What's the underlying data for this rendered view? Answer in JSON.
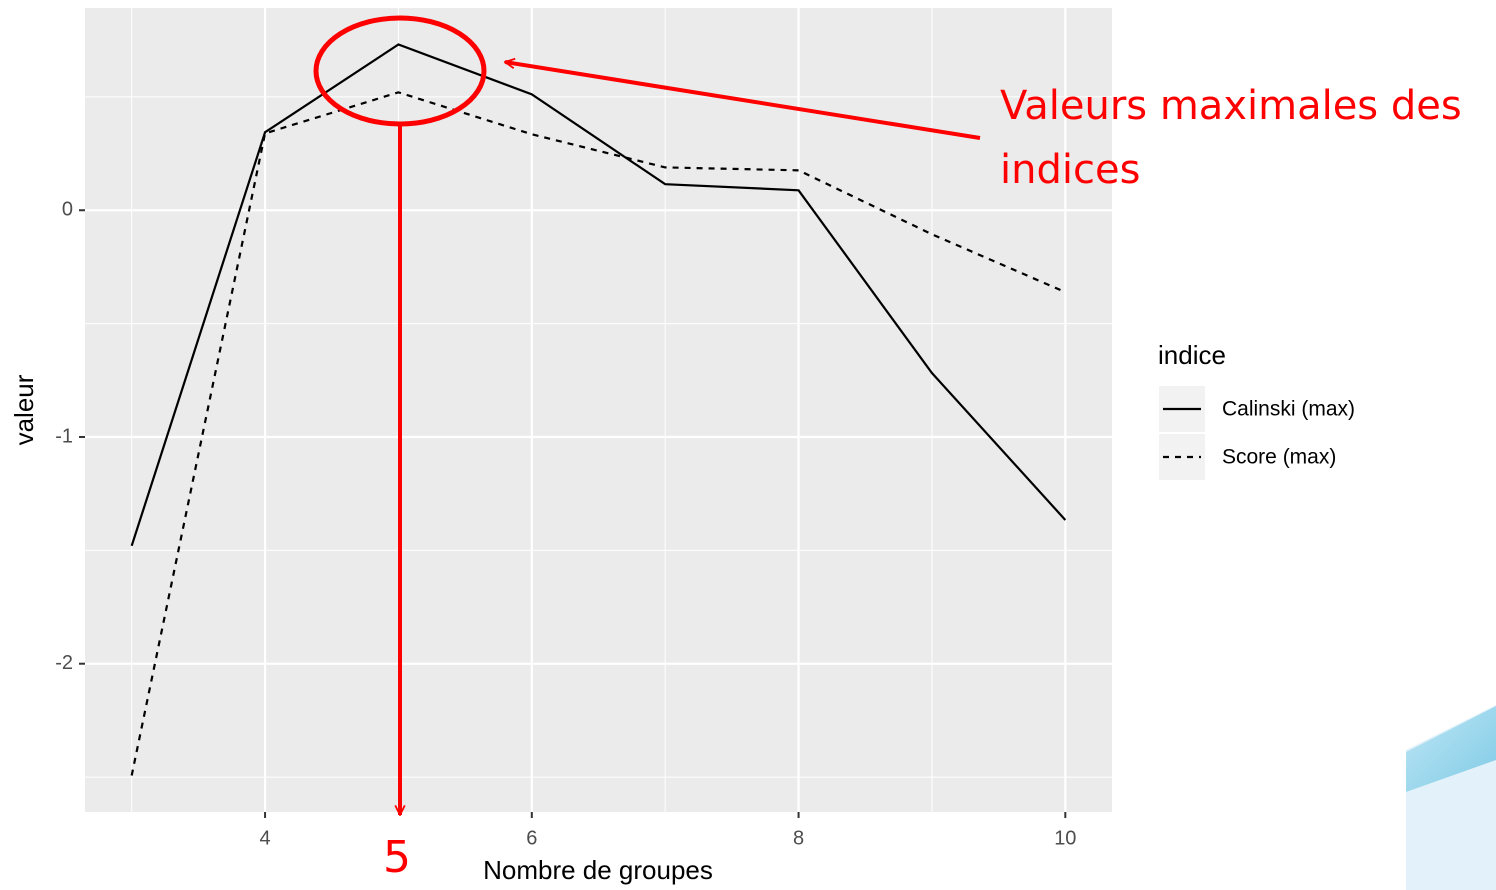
{
  "chart_data": {
    "type": "line",
    "x_label": "Nombre de groupes",
    "y_label": "valeur",
    "x": [
      3,
      4,
      5,
      6,
      7,
      8,
      9,
      10
    ],
    "series": [
      {
        "name": "Calinski (max)",
        "color": "#000000",
        "linetype": "solid",
        "values": [
          -1.48,
          0.344,
          0.731,
          0.511,
          0.115,
          0.088,
          -0.718,
          -1.366
        ]
      },
      {
        "name": "Score (max)",
        "color": "#000000",
        "linetype": "dashed",
        "values": [
          -2.493,
          0.339,
          0.52,
          0.335,
          0.189,
          0.176,
          -0.106,
          -0.361
        ]
      }
    ],
    "xlim": [
      2.65,
      10.35
    ],
    "ylim": [
      -2.654,
      0.892
    ],
    "xticks": [
      4,
      6,
      8,
      10
    ],
    "yticks": [
      -2,
      -1,
      0
    ],
    "minor_grid": {
      "x": [
        3,
        5,
        7,
        9
      ],
      "y": [
        -2.5,
        -1.5,
        -0.5,
        0.5
      ]
    },
    "grid": true,
    "legend": {
      "title": "indice",
      "position": "right"
    },
    "annotations": {
      "callout": [
        "Valeurs maximales des",
        "indices"
      ],
      "x_marker": "5"
    }
  }
}
